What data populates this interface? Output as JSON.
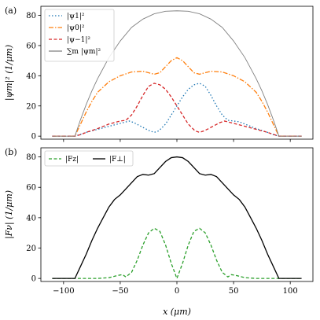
{
  "chart_data": [
    {
      "type": "line",
      "panel_label": "(a)",
      "ylabel": "|ψm|² (1/μm)",
      "xlim": [
        -120,
        120
      ],
      "ylim": [
        -2,
        86
      ],
      "yticks": [
        0,
        20,
        40,
        60,
        80
      ],
      "xticks": [
        -100,
        -50,
        0,
        50,
        100
      ],
      "show_xtick_labels": false,
      "legend_position": "top-left",
      "series": [
        {
          "name": "|ψ1|²",
          "color": "#1f77b4",
          "dash": "dotted",
          "points": [
            [
              -110,
              0
            ],
            [
              -90,
              0
            ],
            [
              -85,
              1.2
            ],
            [
              -80,
              2.5
            ],
            [
              -70,
              4.5
            ],
            [
              -60,
              6.5
            ],
            [
              -50,
              8.5
            ],
            [
              -42,
              10
            ],
            [
              -38,
              9
            ],
            [
              -33,
              7
            ],
            [
              -28,
              5
            ],
            [
              -24,
              3.5
            ],
            [
              -20,
              2.5
            ],
            [
              -16,
              3.5
            ],
            [
              -10,
              8
            ],
            [
              -5,
              14
            ],
            [
              0,
              20
            ],
            [
              5,
              26
            ],
            [
              10,
              31
            ],
            [
              15,
              34
            ],
            [
              20,
              35
            ],
            [
              25,
              33
            ],
            [
              30,
              27
            ],
            [
              35,
              20
            ],
            [
              40,
              14
            ],
            [
              45,
              10.5
            ],
            [
              50,
              10
            ],
            [
              55,
              9.5
            ],
            [
              60,
              8
            ],
            [
              70,
              5
            ],
            [
              80,
              2.5
            ],
            [
              85,
              1
            ],
            [
              90,
              0
            ],
            [
              110,
              0
            ]
          ]
        },
        {
          "name": "|ψ0|²",
          "color": "#ff7f0e",
          "dash": "dashdot",
          "points": [
            [
              -110,
              0
            ],
            [
              -90,
              0
            ],
            [
              -85,
              8
            ],
            [
              -80,
              16
            ],
            [
              -75,
              23
            ],
            [
              -70,
              29
            ],
            [
              -60,
              36
            ],
            [
              -50,
              40
            ],
            [
              -40,
              42.5
            ],
            [
              -30,
              43
            ],
            [
              -20,
              41
            ],
            [
              -15,
              42
            ],
            [
              -10,
              46
            ],
            [
              -5,
              50
            ],
            [
              0,
              52
            ],
            [
              5,
              50
            ],
            [
              10,
              46
            ],
            [
              15,
              42
            ],
            [
              20,
              41
            ],
            [
              30,
              43
            ],
            [
              40,
              42.5
            ],
            [
              50,
              40
            ],
            [
              60,
              36
            ],
            [
              70,
              29
            ],
            [
              75,
              23
            ],
            [
              80,
              16
            ],
            [
              85,
              8
            ],
            [
              90,
              0
            ],
            [
              110,
              0
            ]
          ]
        },
        {
          "name": "|ψ−1|²",
          "color": "#d62728",
          "dash": "dashed",
          "points": [
            [
              -110,
              0
            ],
            [
              -90,
              0
            ],
            [
              -85,
              1
            ],
            [
              -80,
              2.5
            ],
            [
              -70,
              5
            ],
            [
              -60,
              8
            ],
            [
              -50,
              10
            ],
            [
              -45,
              10.5
            ],
            [
              -40,
              14
            ],
            [
              -35,
              20
            ],
            [
              -30,
              27
            ],
            [
              -25,
              33
            ],
            [
              -20,
              35
            ],
            [
              -15,
              34
            ],
            [
              -10,
              31
            ],
            [
              -5,
              26
            ],
            [
              0,
              20
            ],
            [
              5,
              14
            ],
            [
              10,
              8
            ],
            [
              16,
              3.5
            ],
            [
              20,
              2.5
            ],
            [
              24,
              3.5
            ],
            [
              28,
              5
            ],
            [
              33,
              7
            ],
            [
              38,
              9
            ],
            [
              42,
              10
            ],
            [
              50,
              8.5
            ],
            [
              60,
              6.5
            ],
            [
              70,
              4.5
            ],
            [
              80,
              2.5
            ],
            [
              85,
              1.2
            ],
            [
              90,
              0
            ],
            [
              110,
              0
            ]
          ]
        },
        {
          "name": "∑m |ψm|²",
          "color": "#808080",
          "dash": "solid",
          "points": [
            [
              -110,
              0
            ],
            [
              -90,
              0
            ],
            [
              -85,
              11
            ],
            [
              -80,
              21
            ],
            [
              -75,
              30
            ],
            [
              -70,
              38
            ],
            [
              -60,
              52
            ],
            [
              -50,
              63
            ],
            [
              -40,
              72
            ],
            [
              -30,
              77.5
            ],
            [
              -20,
              81
            ],
            [
              -10,
              82.7
            ],
            [
              0,
              83
            ],
            [
              10,
              82.7
            ],
            [
              20,
              81
            ],
            [
              30,
              77.5
            ],
            [
              40,
              72
            ],
            [
              50,
              63
            ],
            [
              60,
              52
            ],
            [
              70,
              38
            ],
            [
              75,
              30
            ],
            [
              80,
              21
            ],
            [
              85,
              11
            ],
            [
              90,
              0
            ],
            [
              110,
              0
            ]
          ]
        }
      ]
    },
    {
      "type": "line",
      "panel_label": "(b)",
      "ylabel": "|Fν| (1/μm)",
      "xlabel": "x (μm)",
      "xlim": [
        -120,
        120
      ],
      "ylim": [
        -2,
        86
      ],
      "yticks": [
        0,
        20,
        40,
        60,
        80
      ],
      "xticks": [
        -100,
        -50,
        0,
        50,
        100
      ],
      "xtick_labels": [
        "−100",
        "−50",
        "0",
        "50",
        "100"
      ],
      "show_xtick_labels": true,
      "legend_position": "top-left",
      "series": [
        {
          "name": "|Fz|",
          "color": "#2ca02c",
          "dash": "dashed",
          "points": [
            [
              -110,
              0
            ],
            [
              -70,
              0
            ],
            [
              -60,
              0.5
            ],
            [
              -52,
              2
            ],
            [
              -48,
              2.5
            ],
            [
              -45,
              1
            ],
            [
              -40,
              4
            ],
            [
              -35,
              12
            ],
            [
              -30,
              22
            ],
            [
              -25,
              30
            ],
            [
              -20,
              33
            ],
            [
              -15,
              31
            ],
            [
              -10,
              22
            ],
            [
              -5,
              10
            ],
            [
              0,
              0
            ],
            [
              5,
              10
            ],
            [
              10,
              22
            ],
            [
              15,
              31
            ],
            [
              20,
              33
            ],
            [
              25,
              30
            ],
            [
              30,
              22
            ],
            [
              35,
              12
            ],
            [
              40,
              4
            ],
            [
              45,
              1
            ],
            [
              48,
              2.5
            ],
            [
              52,
              2
            ],
            [
              60,
              0.5
            ],
            [
              70,
              0
            ],
            [
              110,
              0
            ]
          ]
        },
        {
          "name": "|F⊥|",
          "color": "#000000",
          "dash": "solid",
          "points": [
            [
              -110,
              0
            ],
            [
              -90,
              0
            ],
            [
              -85,
              8
            ],
            [
              -80,
              16
            ],
            [
              -75,
              25
            ],
            [
              -70,
              33
            ],
            [
              -65,
              40
            ],
            [
              -60,
              47
            ],
            [
              -55,
              52
            ],
            [
              -50,
              55
            ],
            [
              -45,
              59
            ],
            [
              -40,
              63
            ],
            [
              -35,
              67
            ],
            [
              -30,
              68.5
            ],
            [
              -25,
              68
            ],
            [
              -20,
              69
            ],
            [
              -15,
              73
            ],
            [
              -10,
              77
            ],
            [
              -5,
              79.5
            ],
            [
              0,
              80
            ],
            [
              5,
              79.5
            ],
            [
              10,
              77
            ],
            [
              15,
              73
            ],
            [
              20,
              69
            ],
            [
              25,
              68
            ],
            [
              30,
              68.5
            ],
            [
              35,
              67
            ],
            [
              40,
              63
            ],
            [
              45,
              59
            ],
            [
              50,
              55
            ],
            [
              55,
              52
            ],
            [
              60,
              47
            ],
            [
              65,
              40
            ],
            [
              70,
              33
            ],
            [
              75,
              25
            ],
            [
              80,
              16
            ],
            [
              85,
              8
            ],
            [
              90,
              0
            ],
            [
              110,
              0
            ]
          ]
        }
      ]
    }
  ]
}
